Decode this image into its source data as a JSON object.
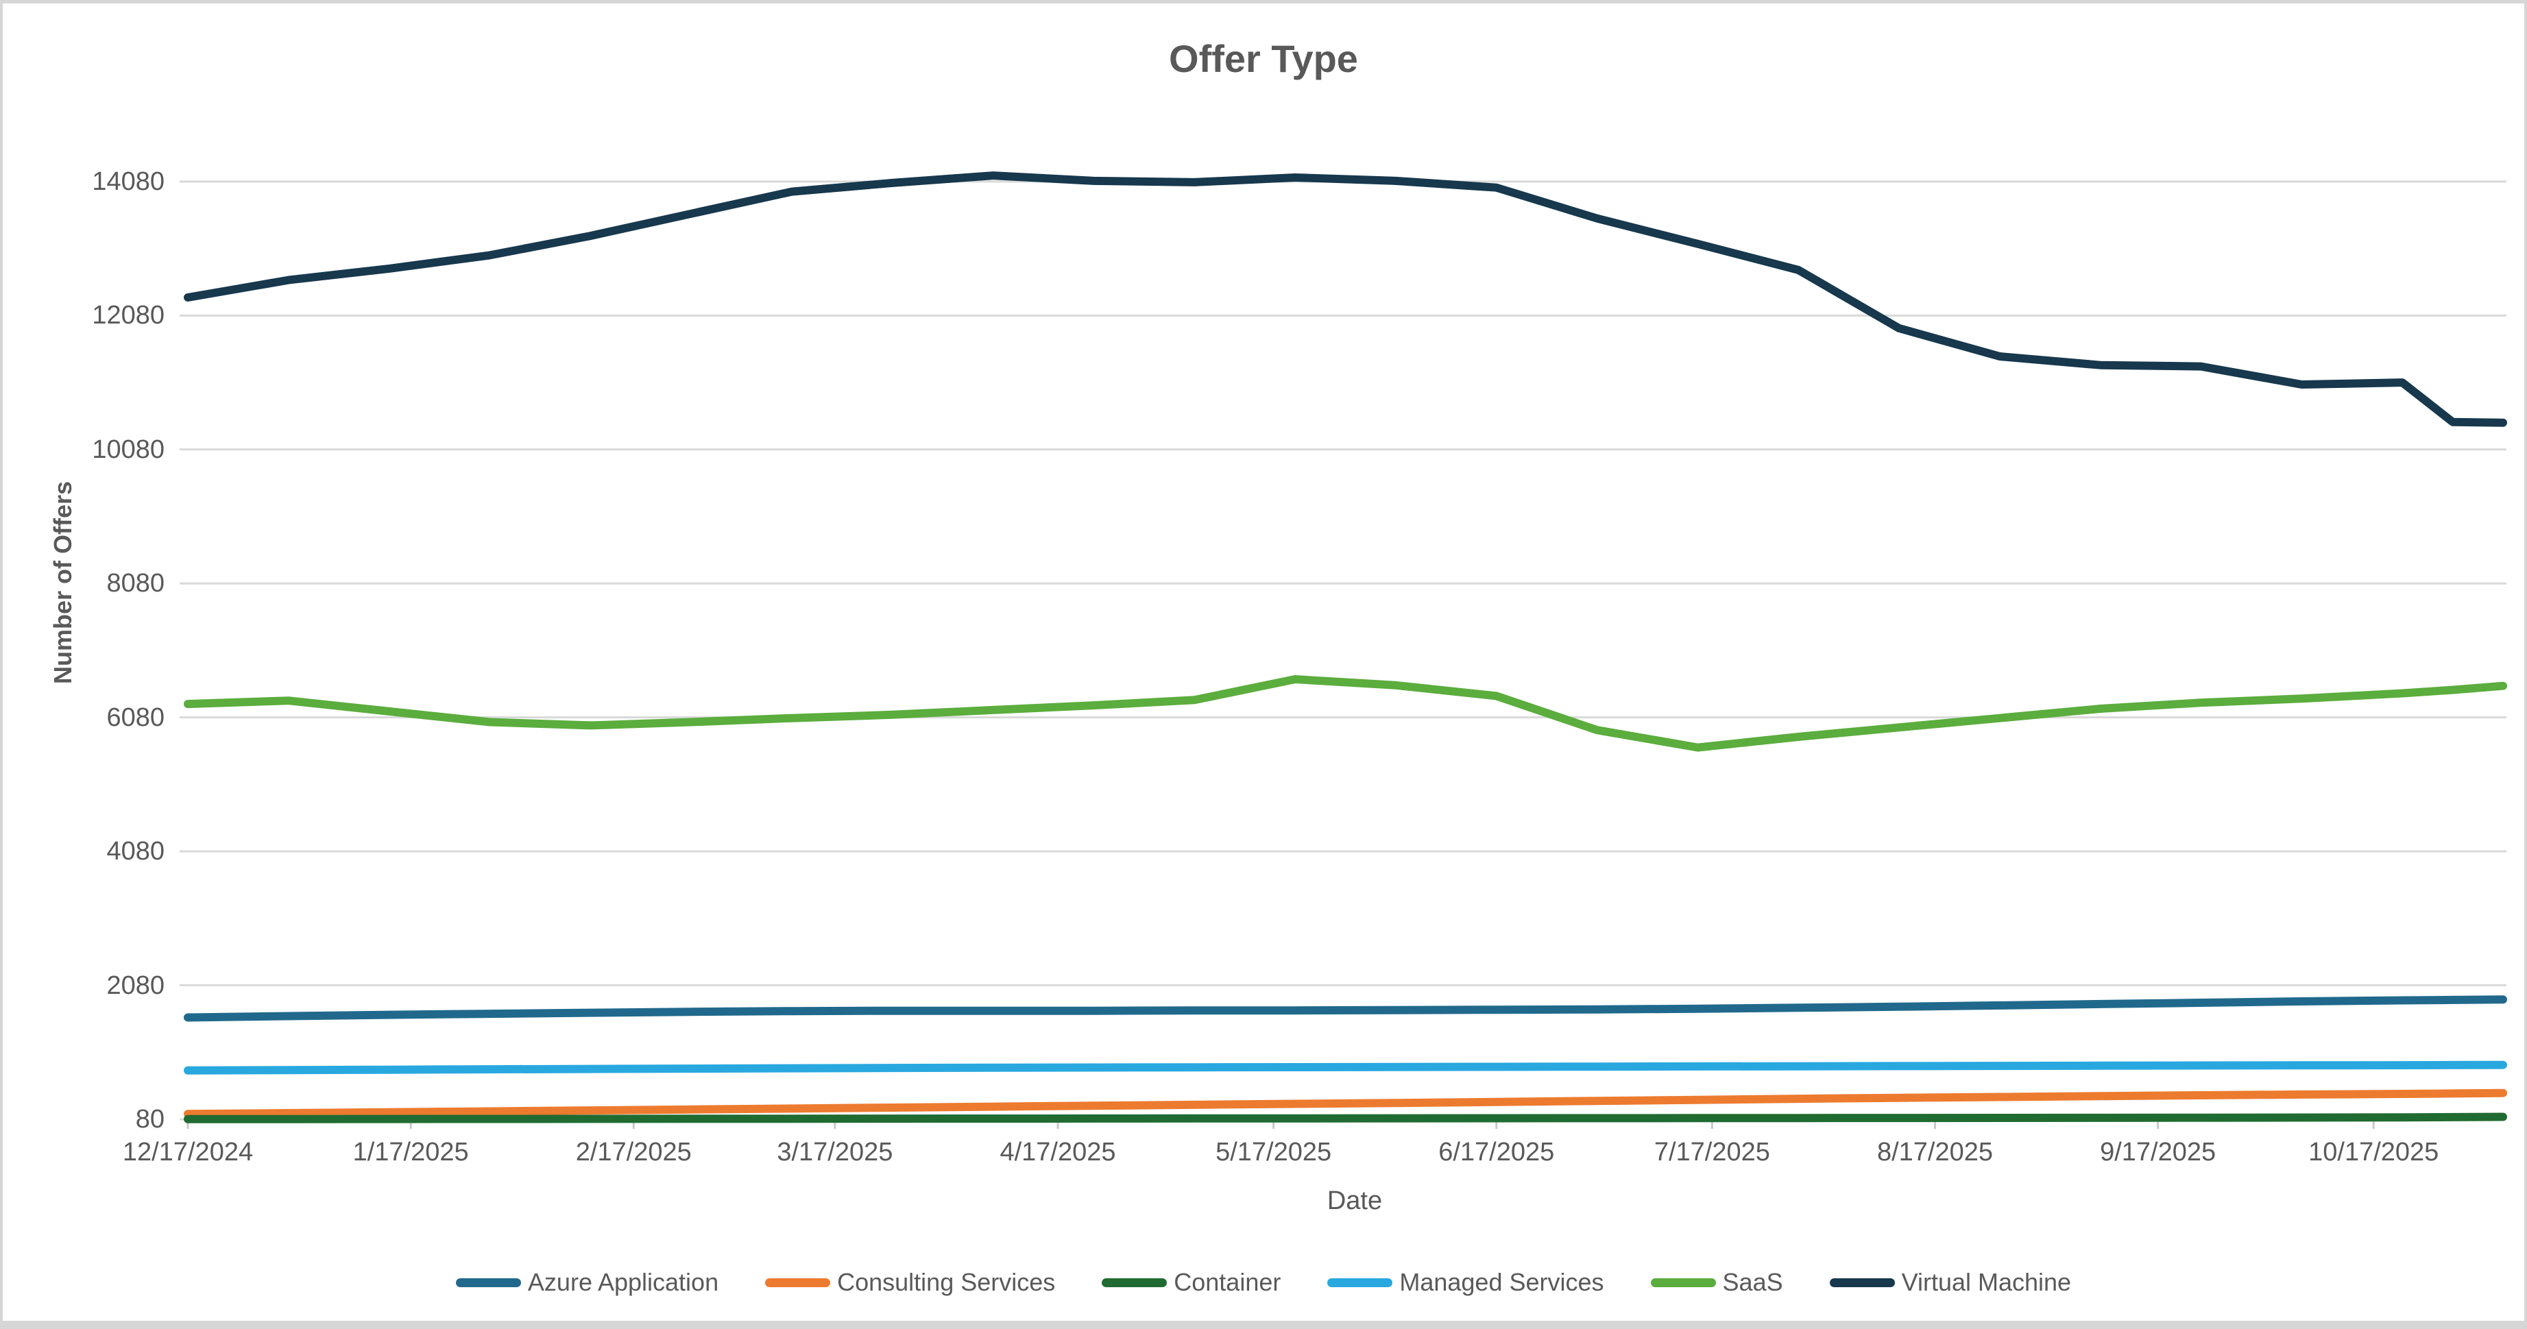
{
  "chart_data": {
    "type": "line",
    "title": "Offer Type",
    "xlabel": "Date",
    "ylabel": "Number of Offers",
    "grid": true,
    "legend_position": "bottom",
    "text_color": "#595959",
    "gridline_color": "#d9d9d9",
    "y_min": 80,
    "y_max": 15000,
    "y_ticks": [
      80,
      2080,
      4080,
      6080,
      8080,
      10080,
      12080,
      14080
    ],
    "x_tick_labels": [
      "12/17/2024",
      "1/17/2025",
      "2/17/2025",
      "3/17/2025",
      "4/17/2025",
      "5/17/2025",
      "6/17/2025",
      "7/17/2025",
      "8/17/2025",
      "9/17/2025",
      "10/17/2025"
    ],
    "x_tick_days": [
      0,
      31,
      62,
      90,
      121,
      151,
      182,
      212,
      243,
      274,
      304
    ],
    "x_total_days": 322,
    "point_dates": [
      "12/17/2024",
      "12/31/2024",
      "1/14/2025",
      "1/28/2025",
      "2/11/2025",
      "2/25/2025",
      "3/11/2025",
      "3/25/2025",
      "4/8/2025",
      "4/22/2025",
      "5/6/2025",
      "5/20/2025",
      "6/3/2025",
      "6/17/2025",
      "7/1/2025",
      "7/15/2025",
      "7/29/2025",
      "8/12/2025",
      "8/26/2025",
      "9/9/2025",
      "9/23/2025",
      "10/7/2025",
      "10/21/2025",
      "10/28/2025",
      "11/4/2025"
    ],
    "point_days": [
      0,
      14,
      28,
      42,
      56,
      70,
      84,
      98,
      112,
      126,
      140,
      154,
      168,
      182,
      196,
      210,
      224,
      238,
      252,
      266,
      280,
      294,
      308,
      315,
      322
    ],
    "series": [
      {
        "name": "Azure Application",
        "color": "#20698C",
        "values": [
          1600,
          1620,
          1640,
          1655,
          1670,
          1685,
          1695,
          1700,
          1700,
          1700,
          1705,
          1705,
          1710,
          1715,
          1720,
          1730,
          1745,
          1760,
          1780,
          1800,
          1820,
          1840,
          1855,
          1862,
          1868
        ]
      },
      {
        "name": "Consulting Services",
        "color": "#EC7B30",
        "values": [
          160,
          172,
          185,
          198,
          212,
          226,
          240,
          254,
          268,
          282,
          296,
          310,
          324,
          338,
          354,
          370,
          386,
          400,
          413,
          426,
          438,
          449,
          459,
          465,
          472
        ]
      },
      {
        "name": "Container",
        "color": "#206B31",
        "values": [
          82,
          83,
          84,
          85,
          86,
          87,
          88,
          89,
          90,
          91,
          92,
          93,
          94,
          95,
          96,
          97,
          98,
          99,
          100,
          102,
          104,
          106,
          108,
          112,
          116
        ]
      },
      {
        "name": "Managed Services",
        "color": "#29A8DF",
        "values": [
          810,
          815,
          820,
          826,
          831,
          836,
          841,
          846,
          850,
          853,
          856,
          858,
          861,
          863,
          866,
          869,
          871,
          874,
          877,
          880,
          883,
          885,
          887,
          889,
          891
        ]
      },
      {
        "name": "SaaS",
        "color": "#5BAD3D",
        "values": [
          6280,
          6330,
          6170,
          6010,
          5960,
          6010,
          6070,
          6120,
          6190,
          6260,
          6340,
          6650,
          6560,
          6400,
          5890,
          5630,
          5790,
          5930,
          6070,
          6210,
          6300,
          6360,
          6440,
          6490,
          6550
        ]
      },
      {
        "name": "Virtual Machine",
        "color": "#17384D",
        "values": [
          12350,
          12610,
          12780,
          12980,
          13270,
          13600,
          13930,
          14060,
          14170,
          14090,
          14070,
          14140,
          14090,
          13990,
          13530,
          13150,
          12760,
          11890,
          11470,
          11340,
          11320,
          11050,
          11080,
          10490,
          10480
        ]
      }
    ]
  }
}
